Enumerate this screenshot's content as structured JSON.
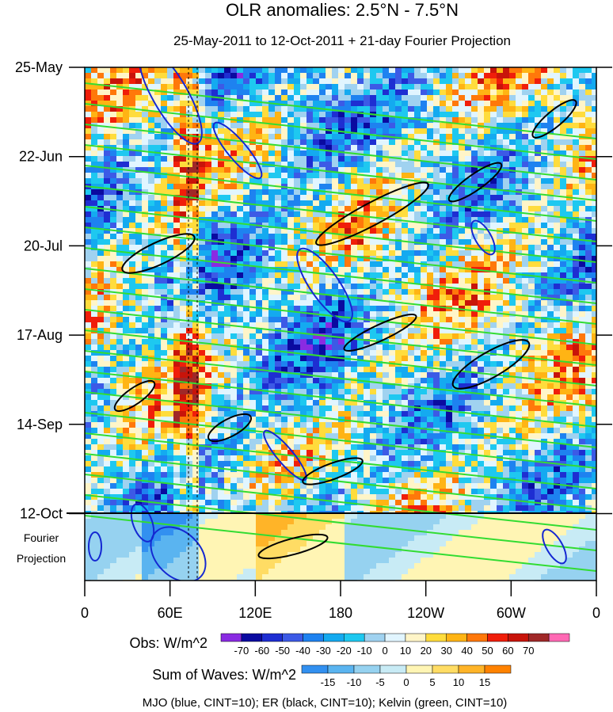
{
  "chart_data": {
    "type": "heatmap",
    "title": "OLR anomalies: 2.5°N - 7.5°N",
    "subtitle": "25-May-2011 to 12-Oct-2011 + 21-day Fourier Projection",
    "x_tick_labels": [
      "0",
      "60E",
      "120E",
      "180",
      "120W",
      "60W",
      "0"
    ],
    "x_tick_lon": [
      0,
      60,
      120,
      180,
      240,
      300,
      360
    ],
    "xlim": [
      0,
      360
    ],
    "y_tick_labels": [
      "25-May",
      "22-Jun",
      "20-Jul",
      "17-Aug",
      "14-Sep",
      "12-Oct"
    ],
    "y_tick_days": [
      0,
      28,
      56,
      84,
      112,
      140
    ],
    "ylim_days": [
      0,
      161
    ],
    "projection_label": [
      "Fourier",
      "Projection"
    ],
    "obs_colorbar": {
      "label": "Obs: W/m^2",
      "levels": [
        -70,
        -60,
        -50,
        -40,
        -30,
        -20,
        -10,
        0,
        10,
        20,
        30,
        40,
        50,
        60,
        70
      ],
      "colors": [
        "#8a2be2",
        "#0a0aa0",
        "#1e2ed2",
        "#3c5ae6",
        "#1e82f0",
        "#14aaf0",
        "#1ec8f0",
        "#a0d2f0",
        "#e1f5ff",
        "#fff5c8",
        "#ffdc3c",
        "#ffb414",
        "#ff780a",
        "#f01e0a",
        "#c8140a",
        "#a02828",
        "#ff69b4"
      ]
    },
    "waves_colorbar": {
      "label": "Sum of Waves: W/m^2",
      "levels": [
        -15,
        -10,
        -5,
        0,
        5,
        10,
        15
      ],
      "colors": [
        "#3290f0",
        "#5ab4f0",
        "#96d2f0",
        "#c8ebf5",
        "#fff5b4",
        "#ffdc64",
        "#ffb428",
        "#ff8200"
      ]
    },
    "contour_legend": "MJO (blue, CINT=10); ER (black, CINT=10); Kelvin (green, CINT=10)",
    "series_colors": {
      "mjo": "#1428d2",
      "er": "#000000",
      "kelvin": "#32dc32"
    },
    "notes": "Time-longitude Hovmoller of observed OLR anomalies with filtered MJO, ER and Kelvin wave contours"
  }
}
